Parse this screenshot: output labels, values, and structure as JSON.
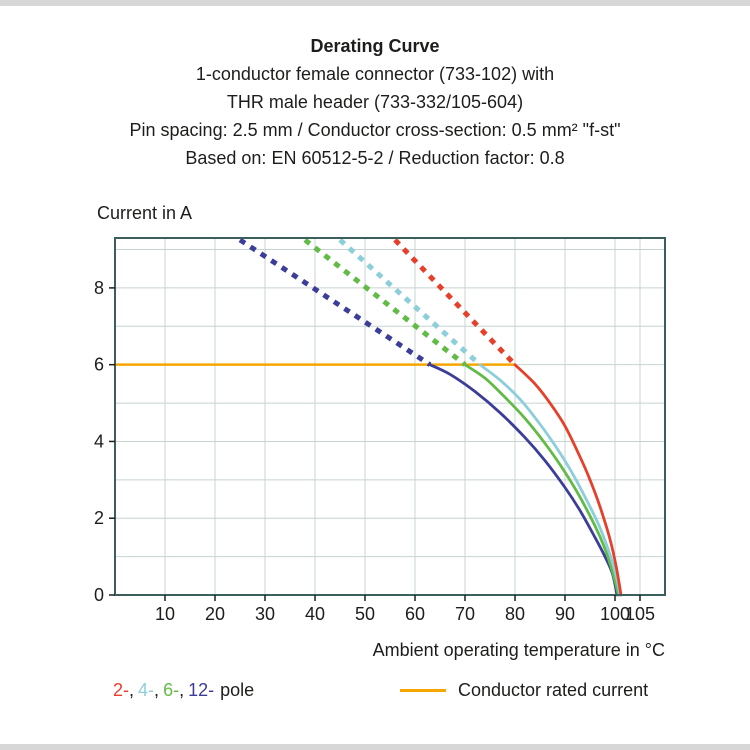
{
  "header": {
    "title": "Derating Curve",
    "subtitle_lines": [
      "1-conductor female connector (733-102) with",
      "THR male header (733-332/105-604)",
      "Pin spacing: 2.5 mm / Conductor cross-section: 0.5 mm² \"f-st\"",
      "Based on: EN 60512-5-2 / Reduction factor: 0.8"
    ]
  },
  "axes": {
    "y_title": "Current in A",
    "x_label": "Ambient operating temperature in °C"
  },
  "legend": {
    "pole_items": [
      {
        "label": "2-",
        "color": "#e6402b"
      },
      {
        "label": "4-",
        "color": "#8cced9"
      },
      {
        "label": "6-",
        "color": "#61bb46"
      },
      {
        "label": "12-",
        "color": "#3b3d98"
      }
    ],
    "separator": ",",
    "suffix": "pole",
    "rated_current_label": "Conductor rated current",
    "rated_current_color": "#f7a600"
  },
  "chart_data": {
    "type": "line",
    "title": "Derating Curve",
    "xlabel": "Ambient operating temperature in °C",
    "ylabel": "Current in A",
    "xlim": [
      0,
      110
    ],
    "ylim": [
      0,
      9.3
    ],
    "x_ticks": [
      10,
      20,
      30,
      40,
      50,
      60,
      70,
      80,
      90,
      100,
      105
    ],
    "y_ticks": [
      0,
      2,
      4,
      6,
      8
    ],
    "y_gridlines": [
      1,
      2,
      3,
      4,
      5,
      6,
      7,
      8,
      9
    ],
    "grid": true,
    "legend_position": "bottom",
    "colors": {
      "grid": "#c7d4d2",
      "frame": "#3a5f5c",
      "text": "#1d1d1b"
    },
    "rated_current_line": {
      "name": "Conductor rated current",
      "color": "#f7a600",
      "points": [
        [
          0,
          6
        ],
        [
          80,
          6
        ]
      ]
    },
    "series": [
      {
        "name": "12-pole",
        "color": "#3b3d98",
        "dashed": [
          [
            25,
            9.25
          ],
          [
            63,
            6
          ]
        ],
        "solid": [
          [
            63,
            6
          ],
          [
            67,
            5.75
          ],
          [
            72,
            5.3
          ],
          [
            77,
            4.75
          ],
          [
            82,
            4.1
          ],
          [
            86,
            3.5
          ],
          [
            90,
            2.8
          ],
          [
            93,
            2.2
          ],
          [
            96,
            1.5
          ],
          [
            98,
            1.0
          ],
          [
            99.5,
            0.55
          ],
          [
            100.4,
            0
          ]
        ]
      },
      {
        "name": "6-pole",
        "color": "#61bb46",
        "dashed": [
          [
            38,
            9.25
          ],
          [
            70,
            6
          ]
        ],
        "solid": [
          [
            70,
            6
          ],
          [
            74,
            5.65
          ],
          [
            78,
            5.15
          ],
          [
            82,
            4.6
          ],
          [
            86,
            3.95
          ],
          [
            90,
            3.2
          ],
          [
            93,
            2.55
          ],
          [
            96,
            1.8
          ],
          [
            98,
            1.2
          ],
          [
            99.5,
            0.6
          ],
          [
            100.7,
            0
          ]
        ]
      },
      {
        "name": "4-pole",
        "color": "#8cced9",
        "dashed": [
          [
            45,
            9.25
          ],
          [
            73,
            6
          ]
        ],
        "solid": [
          [
            73,
            6
          ],
          [
            77,
            5.6
          ],
          [
            81,
            5.1
          ],
          [
            85,
            4.45
          ],
          [
            89,
            3.7
          ],
          [
            92,
            3.05
          ],
          [
            95,
            2.3
          ],
          [
            97,
            1.75
          ],
          [
            99,
            1.05
          ],
          [
            100.3,
            0.45
          ],
          [
            101,
            0
          ]
        ]
      },
      {
        "name": "2-pole",
        "color": "#e6402b",
        "dashed": [
          [
            56,
            9.25
          ],
          [
            80,
            6
          ]
        ],
        "solid": [
          [
            80,
            6
          ],
          [
            84,
            5.5
          ],
          [
            87,
            5.0
          ],
          [
            90,
            4.4
          ],
          [
            93,
            3.6
          ],
          [
            95,
            3.0
          ],
          [
            97,
            2.3
          ],
          [
            99,
            1.45
          ],
          [
            100.3,
            0.7
          ],
          [
            101.2,
            0
          ]
        ]
      }
    ]
  }
}
